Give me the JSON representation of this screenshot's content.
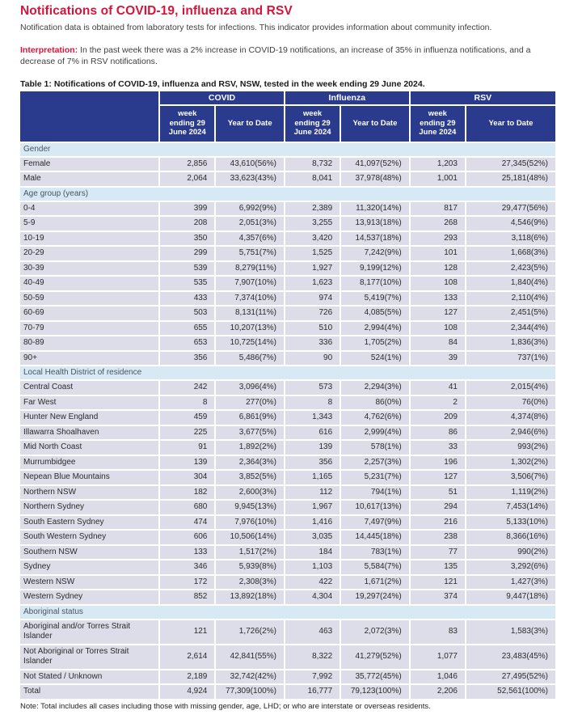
{
  "page": {
    "title": "Notifications of COVID-19, influenza and RSV",
    "intro": "Notification data is obtained from laboratory tests for infections. This indicator provides information about community infection.",
    "interpretation_label": "Interpretation:",
    "interpretation_text": "In the past week there was a 2% increase in COVID-19 notifications, an increase of 35% in influenza notifications, and a decrease of 7% in RSV notifications.",
    "table_caption": "Table 1: Notifications of COVID-19, influenza and RSV, NSW, tested in the week ending 29 June 2024.",
    "note": "Note: Total includes all cases including those with missing gender, age, LHD; or who are interstate or overseas residents."
  },
  "colors": {
    "title_red": "#d7153a",
    "header_navy": "#2a3b8e",
    "section_bg": "#d8e9f6",
    "cell_bg": "#dcdde8"
  },
  "table": {
    "groups": [
      "COVID",
      "Influenza",
      "RSV"
    ],
    "col_week": "week\nending 29\nJune 2024",
    "col_ytd": "Year to Date",
    "sections": [
      {
        "label": "Gender",
        "rows": [
          {
            "label": "Female",
            "values": [
              "2,856",
              "43,610(56%)",
              "8,732",
              "41,097(52%)",
              "1,203",
              "27,345(52%)"
            ]
          },
          {
            "label": "Male",
            "values": [
              "2,064",
              "33,623(43%)",
              "8,041",
              "37,978(48%)",
              "1,001",
              "25,181(48%)"
            ]
          }
        ]
      },
      {
        "label": "Age group (years)",
        "rows": [
          {
            "label": "0-4",
            "values": [
              "399",
              "6,992(9%)",
              "2,389",
              "11,320(14%)",
              "817",
              "29,477(56%)"
            ]
          },
          {
            "label": "5-9",
            "values": [
              "208",
              "2,051(3%)",
              "3,255",
              "13,913(18%)",
              "268",
              "4,546(9%)"
            ]
          },
          {
            "label": "10-19",
            "values": [
              "350",
              "4,357(6%)",
              "3,420",
              "14,537(18%)",
              "293",
              "3,118(6%)"
            ]
          },
          {
            "label": "20-29",
            "values": [
              "299",
              "5,751(7%)",
              "1,525",
              "7,242(9%)",
              "101",
              "1,668(3%)"
            ]
          },
          {
            "label": "30-39",
            "values": [
              "539",
              "8,279(11%)",
              "1,927",
              "9,199(12%)",
              "128",
              "2,423(5%)"
            ]
          },
          {
            "label": "40-49",
            "values": [
              "535",
              "7,907(10%)",
              "1,623",
              "8,177(10%)",
              "108",
              "1,840(4%)"
            ]
          },
          {
            "label": "50-59",
            "values": [
              "433",
              "7,374(10%)",
              "974",
              "5,419(7%)",
              "133",
              "2,110(4%)"
            ]
          },
          {
            "label": "60-69",
            "values": [
              "503",
              "8,131(11%)",
              "726",
              "4,085(5%)",
              "127",
              "2,451(5%)"
            ]
          },
          {
            "label": "70-79",
            "values": [
              "655",
              "10,207(13%)",
              "510",
              "2,994(4%)",
              "108",
              "2,344(4%)"
            ]
          },
          {
            "label": "80-89",
            "values": [
              "653",
              "10,725(14%)",
              "336",
              "1,705(2%)",
              "84",
              "1,836(3%)"
            ]
          },
          {
            "label": "90+",
            "values": [
              "356",
              "5,486(7%)",
              "90",
              "524(1%)",
              "39",
              "737(1%)"
            ]
          }
        ]
      },
      {
        "label": "Local Health District of residence",
        "rows": [
          {
            "label": "Central Coast",
            "values": [
              "242",
              "3,096(4%)",
              "573",
              "2,294(3%)",
              "41",
              "2,015(4%)"
            ]
          },
          {
            "label": "Far West",
            "values": [
              "8",
              "277(0%)",
              "8",
              "86(0%)",
              "2",
              "76(0%)"
            ]
          },
          {
            "label": "Hunter New England",
            "values": [
              "459",
              "6,861(9%)",
              "1,343",
              "4,762(6%)",
              "209",
              "4,374(8%)"
            ]
          },
          {
            "label": "Illawarra Shoalhaven",
            "values": [
              "225",
              "3,677(5%)",
              "616",
              "2,999(4%)",
              "86",
              "2,946(6%)"
            ]
          },
          {
            "label": "Mid North Coast",
            "values": [
              "91",
              "1,892(2%)",
              "139",
              "578(1%)",
              "33",
              "993(2%)"
            ]
          },
          {
            "label": "Murrumbidgee",
            "values": [
              "139",
              "2,364(3%)",
              "356",
              "2,257(3%)",
              "196",
              "1,302(2%)"
            ]
          },
          {
            "label": "Nepean Blue Mountains",
            "values": [
              "304",
              "3,852(5%)",
              "1,165",
              "5,231(7%)",
              "127",
              "3,506(7%)"
            ]
          },
          {
            "label": "Northern NSW",
            "values": [
              "182",
              "2,600(3%)",
              "112",
              "794(1%)",
              "51",
              "1,119(2%)"
            ]
          },
          {
            "label": "Northern Sydney",
            "values": [
              "680",
              "9,945(13%)",
              "1,967",
              "10,617(13%)",
              "294",
              "7,453(14%)"
            ]
          },
          {
            "label": "South Eastern Sydney",
            "values": [
              "474",
              "7,976(10%)",
              "1,416",
              "7,497(9%)",
              "216",
              "5,133(10%)"
            ]
          },
          {
            "label": "South Western Sydney",
            "values": [
              "606",
              "10,506(14%)",
              "3,035",
              "14,445(18%)",
              "238",
              "8,366(16%)"
            ]
          },
          {
            "label": "Southern NSW",
            "values": [
              "133",
              "1,517(2%)",
              "184",
              "783(1%)",
              "77",
              "990(2%)"
            ]
          },
          {
            "label": "Sydney",
            "values": [
              "346",
              "5,939(8%)",
              "1,103",
              "5,584(7%)",
              "135",
              "3,292(6%)"
            ]
          },
          {
            "label": "Western NSW",
            "values": [
              "172",
              "2,308(3%)",
              "422",
              "1,671(2%)",
              "121",
              "1,427(3%)"
            ]
          },
          {
            "label": "Western Sydney",
            "values": [
              "852",
              "13,892(18%)",
              "4,304",
              "19,297(24%)",
              "374",
              "9,447(18%)"
            ]
          }
        ]
      },
      {
        "label": "Aboriginal status",
        "rows": [
          {
            "label": "Aboriginal and/or Torres Strait Islander",
            "values": [
              "121",
              "1,726(2%)",
              "463",
              "2,072(3%)",
              "83",
              "1,583(3%)"
            ]
          },
          {
            "label": "Not Aboriginal or Torres Strait Islander",
            "values": [
              "2,614",
              "42,841(55%)",
              "8,322",
              "41,279(52%)",
              "1,077",
              "23,483(45%)"
            ]
          },
          {
            "label": "Not Stated / Unknown",
            "values": [
              "2,189",
              "32,742(42%)",
              "7,992",
              "35,772(45%)",
              "1,046",
              "27,495(52%)"
            ]
          }
        ]
      }
    ],
    "total_row": {
      "label": "Total",
      "values": [
        "4,924",
        "77,309(100%)",
        "16,777",
        "79,123(100%)",
        "2,206",
        "52,561(100%)"
      ]
    }
  }
}
